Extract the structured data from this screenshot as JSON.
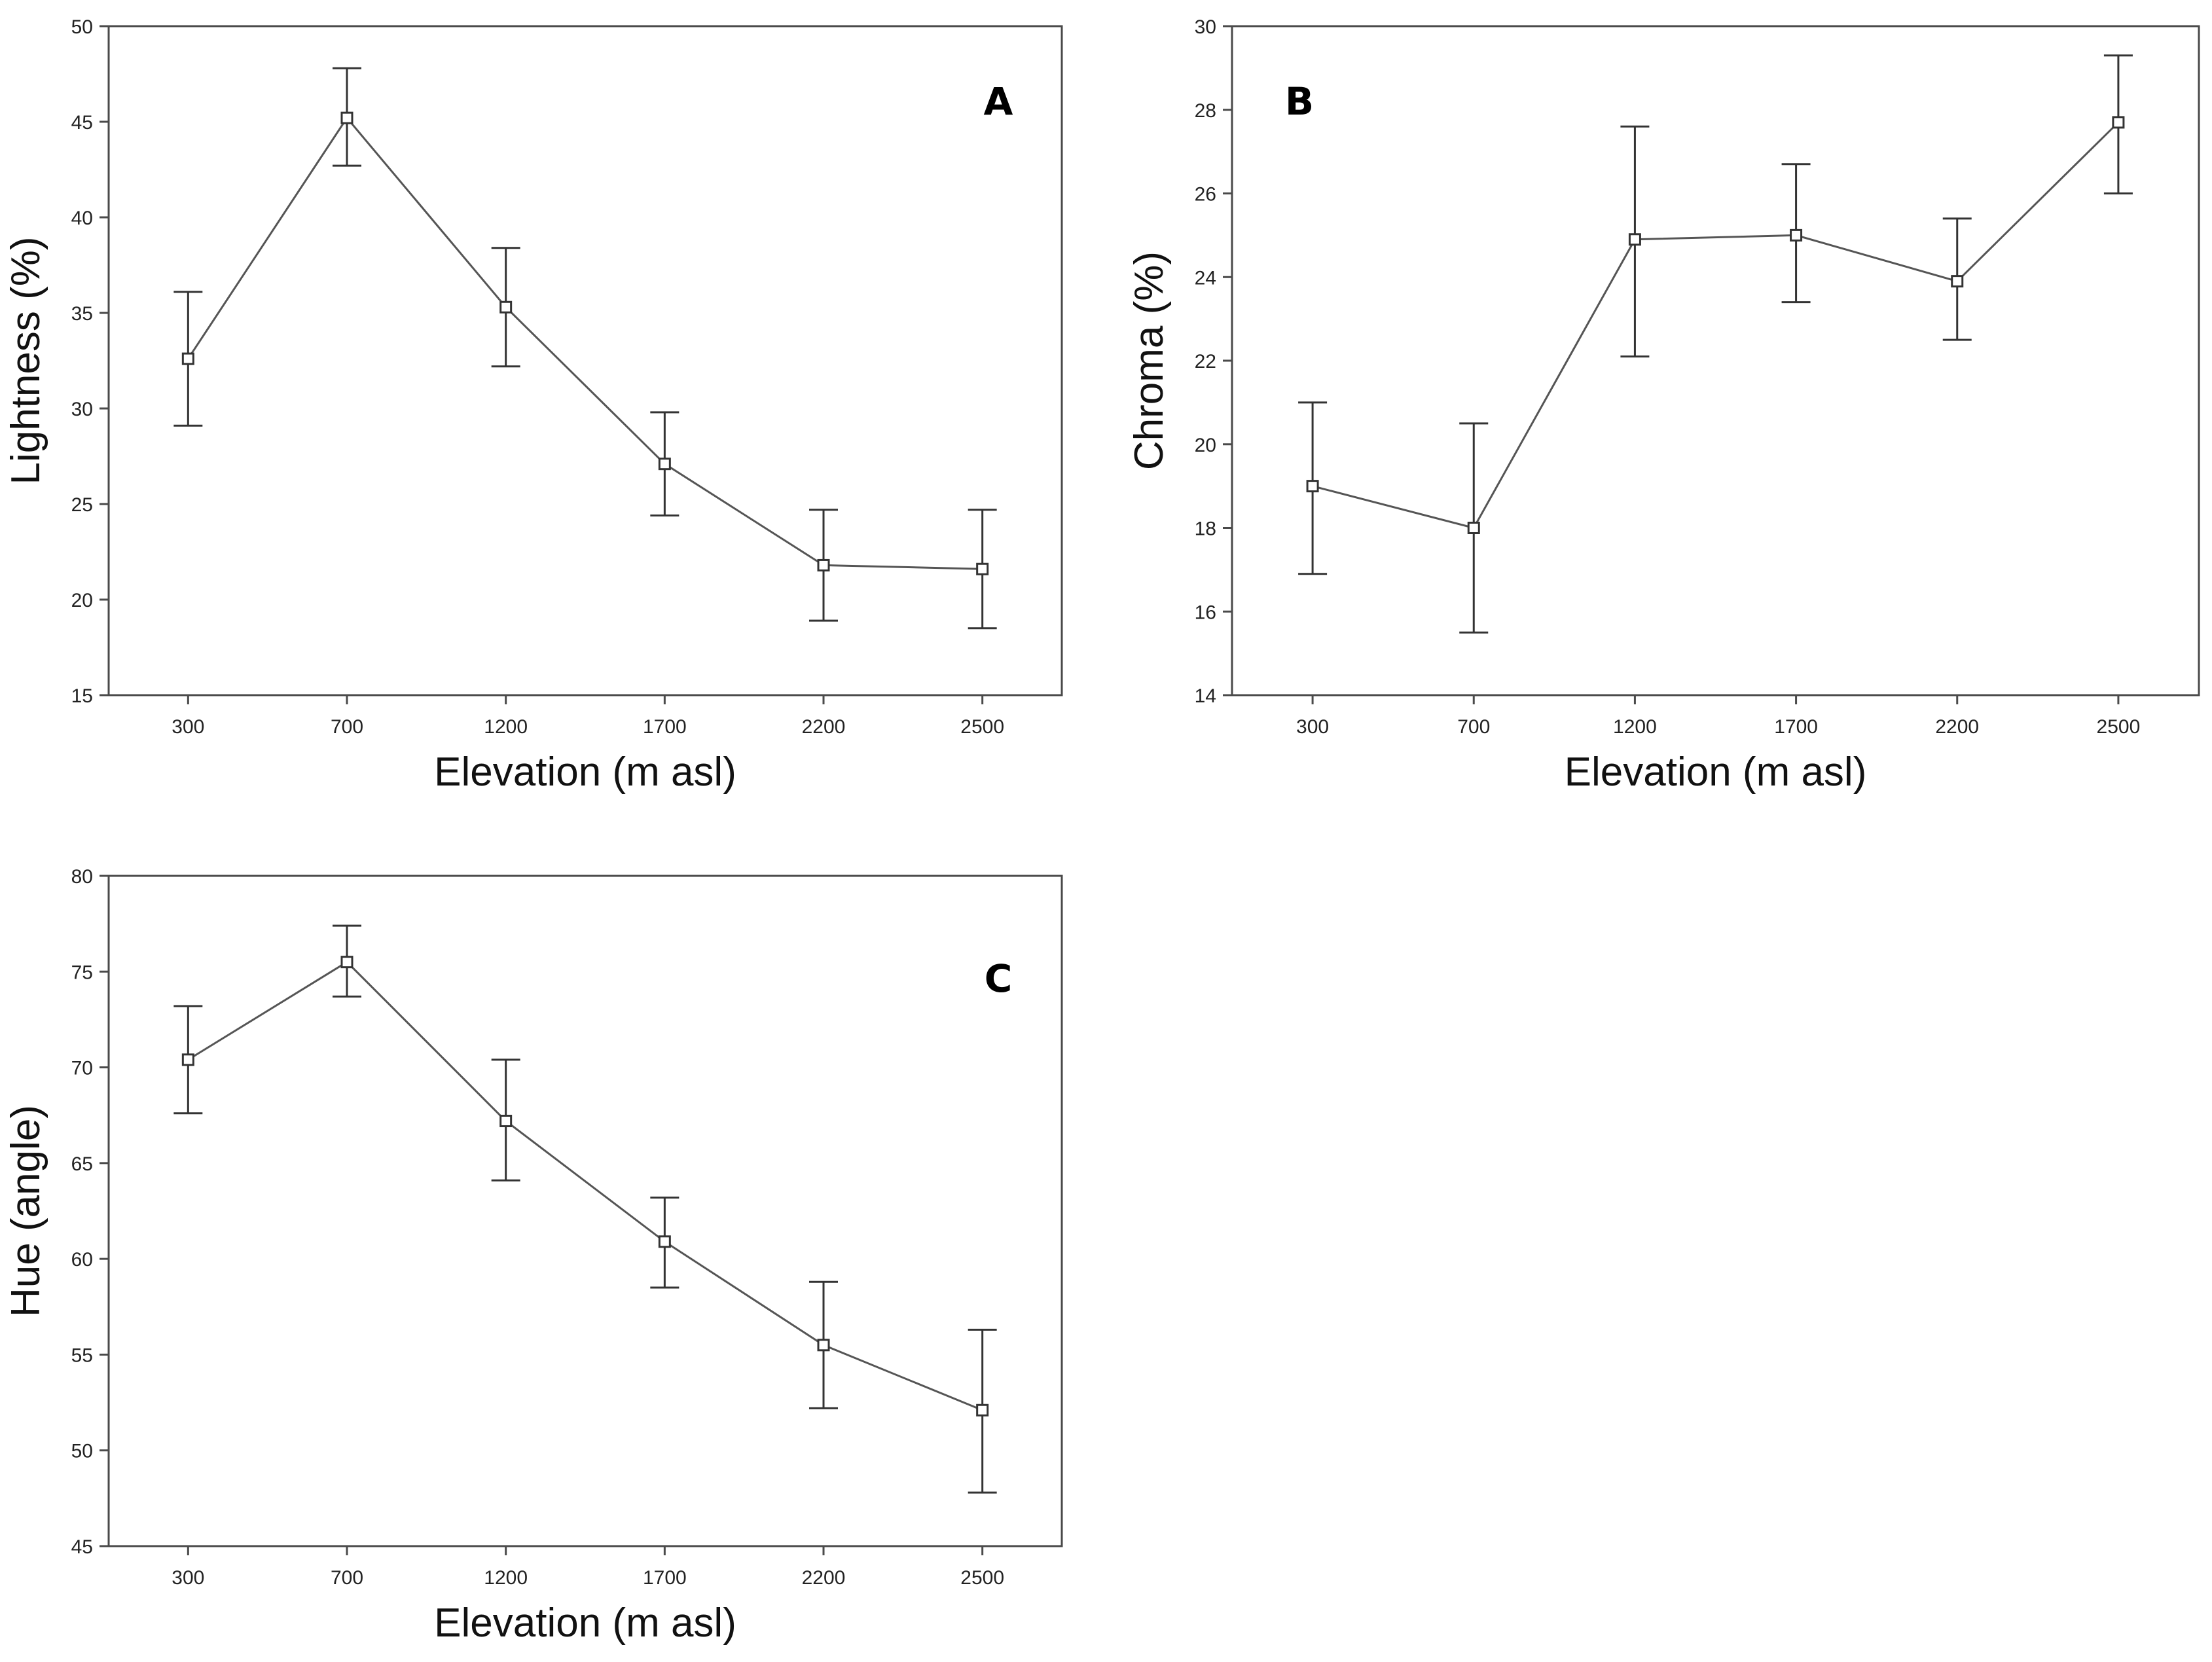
{
  "chart_data": [
    {
      "id": "A",
      "type": "line",
      "panel_label": "A",
      "xlabel": "Elevation (m asl)",
      "ylabel": "Lightness (%)",
      "categories": [
        "300",
        "700",
        "1200",
        "1700",
        "2200",
        "2500"
      ],
      "ylim": [
        15,
        50
      ],
      "yticks": [
        15,
        20,
        25,
        30,
        35,
        40,
        45,
        50
      ],
      "series": [
        {
          "name": "Lightness",
          "values": [
            32.6,
            45.2,
            35.3,
            27.1,
            21.8,
            21.6
          ],
          "err_low": [
            29.1,
            42.7,
            32.2,
            24.4,
            18.9,
            18.5
          ],
          "err_high": [
            36.1,
            47.8,
            38.4,
            29.8,
            24.7,
            24.7
          ]
        }
      ]
    },
    {
      "id": "B",
      "type": "line",
      "panel_label": "B",
      "xlabel": "Elevation (m asl)",
      "ylabel": "Chroma (%)",
      "categories": [
        "300",
        "700",
        "1200",
        "1700",
        "2200",
        "2500"
      ],
      "ylim": [
        14,
        30
      ],
      "yticks": [
        14,
        16,
        18,
        20,
        22,
        24,
        26,
        28,
        30
      ],
      "series": [
        {
          "name": "Chroma",
          "values": [
            19.0,
            18.0,
            24.9,
            25.0,
            23.9,
            27.7
          ],
          "err_low": [
            16.9,
            15.5,
            22.1,
            23.4,
            22.5,
            26.0
          ],
          "err_high": [
            21.0,
            20.5,
            27.6,
            26.7,
            25.4,
            29.3
          ]
        }
      ]
    },
    {
      "id": "C",
      "type": "line",
      "panel_label": "C",
      "xlabel": "Elevation (m asl)",
      "ylabel": "Hue (angle)",
      "categories": [
        "300",
        "700",
        "1200",
        "1700",
        "2200",
        "2500"
      ],
      "ylim": [
        45,
        80
      ],
      "yticks": [
        45,
        50,
        55,
        60,
        65,
        70,
        75,
        80
      ],
      "series": [
        {
          "name": "Hue",
          "values": [
            70.4,
            75.5,
            67.2,
            60.9,
            55.5,
            52.1
          ],
          "err_low": [
            67.6,
            73.7,
            64.1,
            58.5,
            52.2,
            47.8
          ],
          "err_high": [
            73.2,
            77.4,
            70.4,
            63.2,
            58.8,
            56.3
          ]
        }
      ]
    }
  ]
}
